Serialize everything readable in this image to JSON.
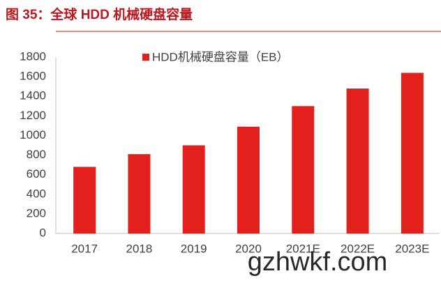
{
  "chart_data": {
    "type": "bar",
    "title": "图 35：全球 HDD 机械硬盘容量",
    "categories": [
      "2017",
      "2018",
      "2019",
      "2020",
      "2021E",
      "2022E",
      "2023E"
    ],
    "series": [
      {
        "name": "HDD机械硬盘容量（EB）",
        "color": "#e3201b",
        "values": [
          680,
          810,
          900,
          1090,
          1300,
          1480,
          1640
        ]
      }
    ],
    "ylim": [
      0,
      1800
    ],
    "yticks": [
      0,
      200,
      400,
      600,
      800,
      1000,
      1200,
      1400,
      1600,
      1800
    ],
    "grid": false,
    "legend": "top",
    "watermark": "gzhwkf.com"
  }
}
